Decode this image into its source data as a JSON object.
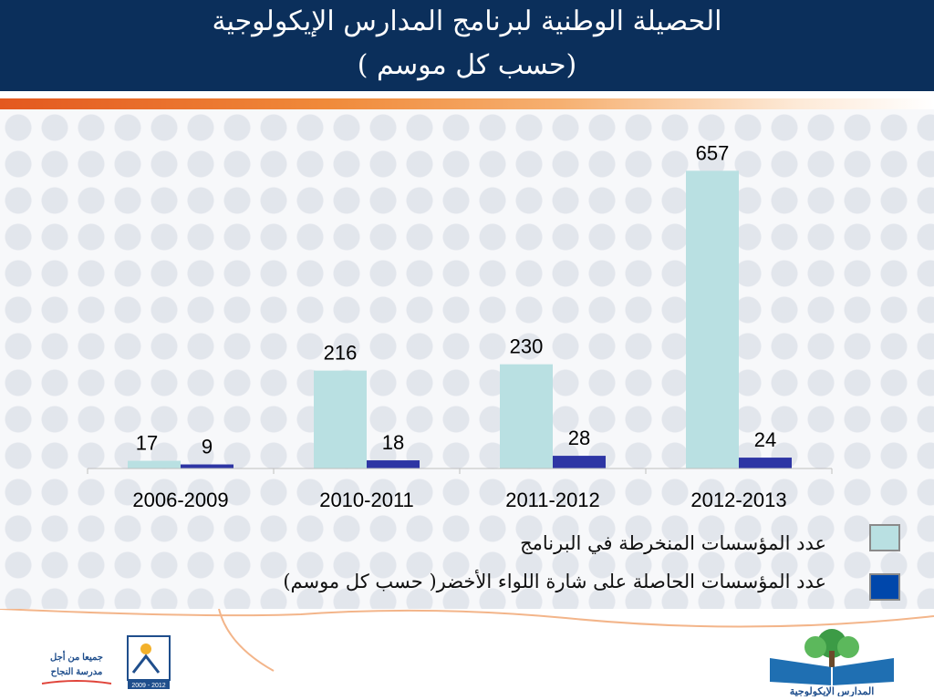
{
  "header": {
    "title_line1": "الحصيلة الوطنية لبرنامج المدارس الإيكولوجية",
    "title_line2": "( حسب كل موسم)"
  },
  "colors": {
    "series1": "#b9e0e2",
    "series2": "#2d35a4",
    "header_bg": "#0b2f5b",
    "accent": "#e3581f"
  },
  "chart_data": {
    "type": "bar",
    "categories": [
      "2006-2009",
      "2010-2011",
      "2011-2012",
      "2012-2013"
    ],
    "series": [
      {
        "name": "عدد المؤسسات المنخرطة في البرنامج",
        "values": [
          17,
          216,
          230,
          657
        ]
      },
      {
        "name": "عدد المؤسسات الحاصلة على شارة اللواء الأخضر( حسب كل موسم)",
        "values": [
          9,
          18,
          28,
          24
        ]
      }
    ],
    "ylim": [
      0,
      700
    ],
    "grid": false,
    "legend": "bottom-right"
  },
  "footer": {
    "left_logo_text_1": "جميعا من أجل",
    "left_logo_text_2": "مدرسة النجاح",
    "left_logo_years": "2009 - 2012",
    "right_logo_text": "المدارس الإيكولوجية"
  }
}
